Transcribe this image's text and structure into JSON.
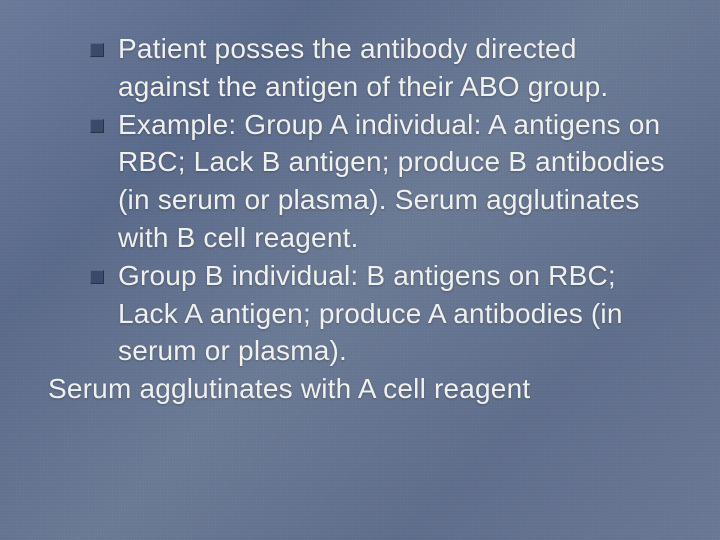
{
  "slide": {
    "background_gradient": [
      "#6b7a9a",
      "#5a6a8a",
      "#6b7a95",
      "#5f6e8c",
      "#6a7896"
    ],
    "bullet_color": "#3a4a6a",
    "text_color": "#f0f0ee",
    "font_family": "Tahoma, Verdana, Arial, sans-serif",
    "font_size_pt": 21,
    "bullets": [
      "Patient posses the antibody directed against the antigen of their ABO group.",
      "Example: Group A individual: A antigens on RBC; Lack B antigen; produce B antibodies (in serum or plasma). Serum agglutinates with B cell reagent.",
      "Group B individual: B antigens on RBC; Lack A antigen; produce A antibodies (in serum or plasma)."
    ],
    "trailing_text": "Serum agglutinates with A cell reagent"
  }
}
